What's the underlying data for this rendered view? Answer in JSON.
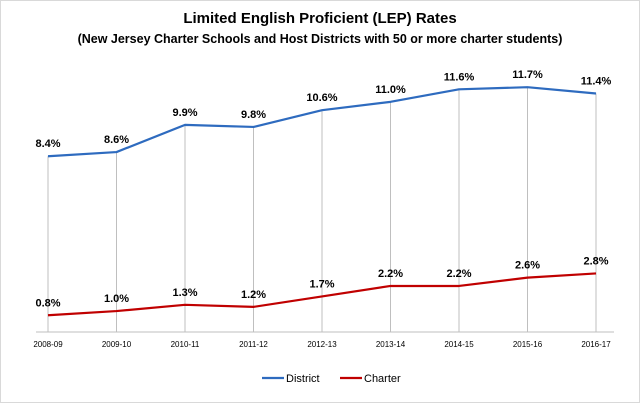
{
  "chart_data": {
    "type": "line",
    "title": "Limited English Proficient (LEP) Rates",
    "subtitle": "(New Jersey Charter Schools and Host Districts with 50 or more charter students)",
    "categories": [
      "2008-09",
      "2009-10",
      "2010-11",
      "2011-12",
      "2012-13",
      "2013-14",
      "2014-15",
      "2015-16",
      "2016-17"
    ],
    "series": [
      {
        "name": "District",
        "color": "#2e6bbf",
        "values": [
          8.4,
          8.6,
          9.9,
          9.8,
          10.6,
          11.0,
          11.6,
          11.7,
          11.4
        ],
        "labels": [
          "8.4%",
          "8.6%",
          "9.9%",
          "9.8%",
          "10.6%",
          "11.0%",
          "11.6%",
          "11.7%",
          "11.4%"
        ]
      },
      {
        "name": "Charter",
        "color": "#c00000",
        "values": [
          0.8,
          1.0,
          1.3,
          1.2,
          1.7,
          2.2,
          2.2,
          2.6,
          2.8
        ],
        "labels": [
          "0.8%",
          "1.0%",
          "1.3%",
          "1.2%",
          "1.7%",
          "2.2%",
          "2.2%",
          "2.6%",
          "2.8%"
        ]
      }
    ],
    "ylim": [
      0,
      13
    ],
    "grid": false,
    "drop_lines": true,
    "legend_position": "bottom"
  }
}
